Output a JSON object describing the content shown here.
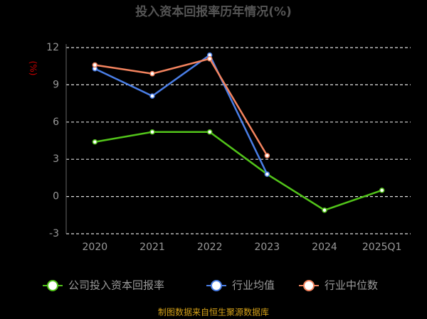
{
  "chart_data": {
    "type": "line",
    "title": "投入资本回报率历年情况(%)",
    "y_label": "(%)",
    "categories": [
      "2020",
      "2021",
      "2022",
      "2023",
      "2024",
      "2025Q1"
    ],
    "series": [
      {
        "name": "公司投入资本回报率",
        "color": "#52c41a",
        "values": [
          4.4,
          5.2,
          5.2,
          1.8,
          -1.1,
          0.5
        ]
      },
      {
        "name": "行业均值",
        "color": "#4a7ee6",
        "values": [
          10.3,
          8.1,
          11.4,
          1.8,
          null,
          null
        ]
      },
      {
        "name": "行业中位数",
        "color": "#f4845f",
        "values": [
          10.6,
          9.9,
          11.1,
          3.3,
          null,
          null
        ]
      }
    ],
    "ylim": [
      -3,
      12
    ],
    "yticks": [
      -3,
      0,
      3,
      6,
      9,
      12
    ],
    "grid": true,
    "footer": "制图数据来自恒生聚源数据库"
  }
}
